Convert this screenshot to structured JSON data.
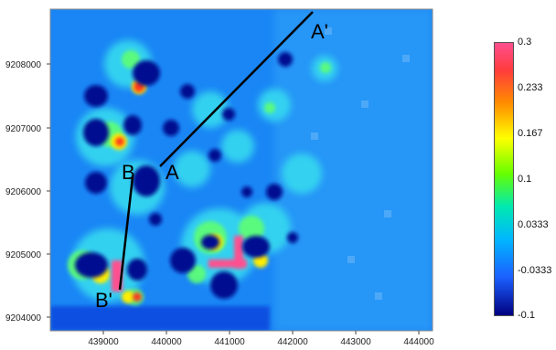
{
  "map": {
    "x_ticks": [
      "439000",
      "440000",
      "441000",
      "442000",
      "443000",
      "444000"
    ],
    "y_ticks": [
      "9208000",
      "9207000",
      "9206000",
      "9205000",
      "9204000"
    ],
    "profiles": [
      {
        "start_label": "A",
        "end_label": "A'"
      },
      {
        "start_label": "B",
        "end_label": "B'"
      }
    ]
  },
  "colorbar": {
    "labels": [
      "0.3",
      "0.233",
      "0.167",
      "0.1",
      "0.0333",
      "-0.0333",
      "-0.1"
    ],
    "colors": [
      "#000080",
      "#1c60ff",
      "#00b7ff",
      "#00e9b0",
      "#66ff00",
      "#ffff00",
      "#ff8c00",
      "#ff3c3c",
      "#ff4f8f"
    ]
  }
}
